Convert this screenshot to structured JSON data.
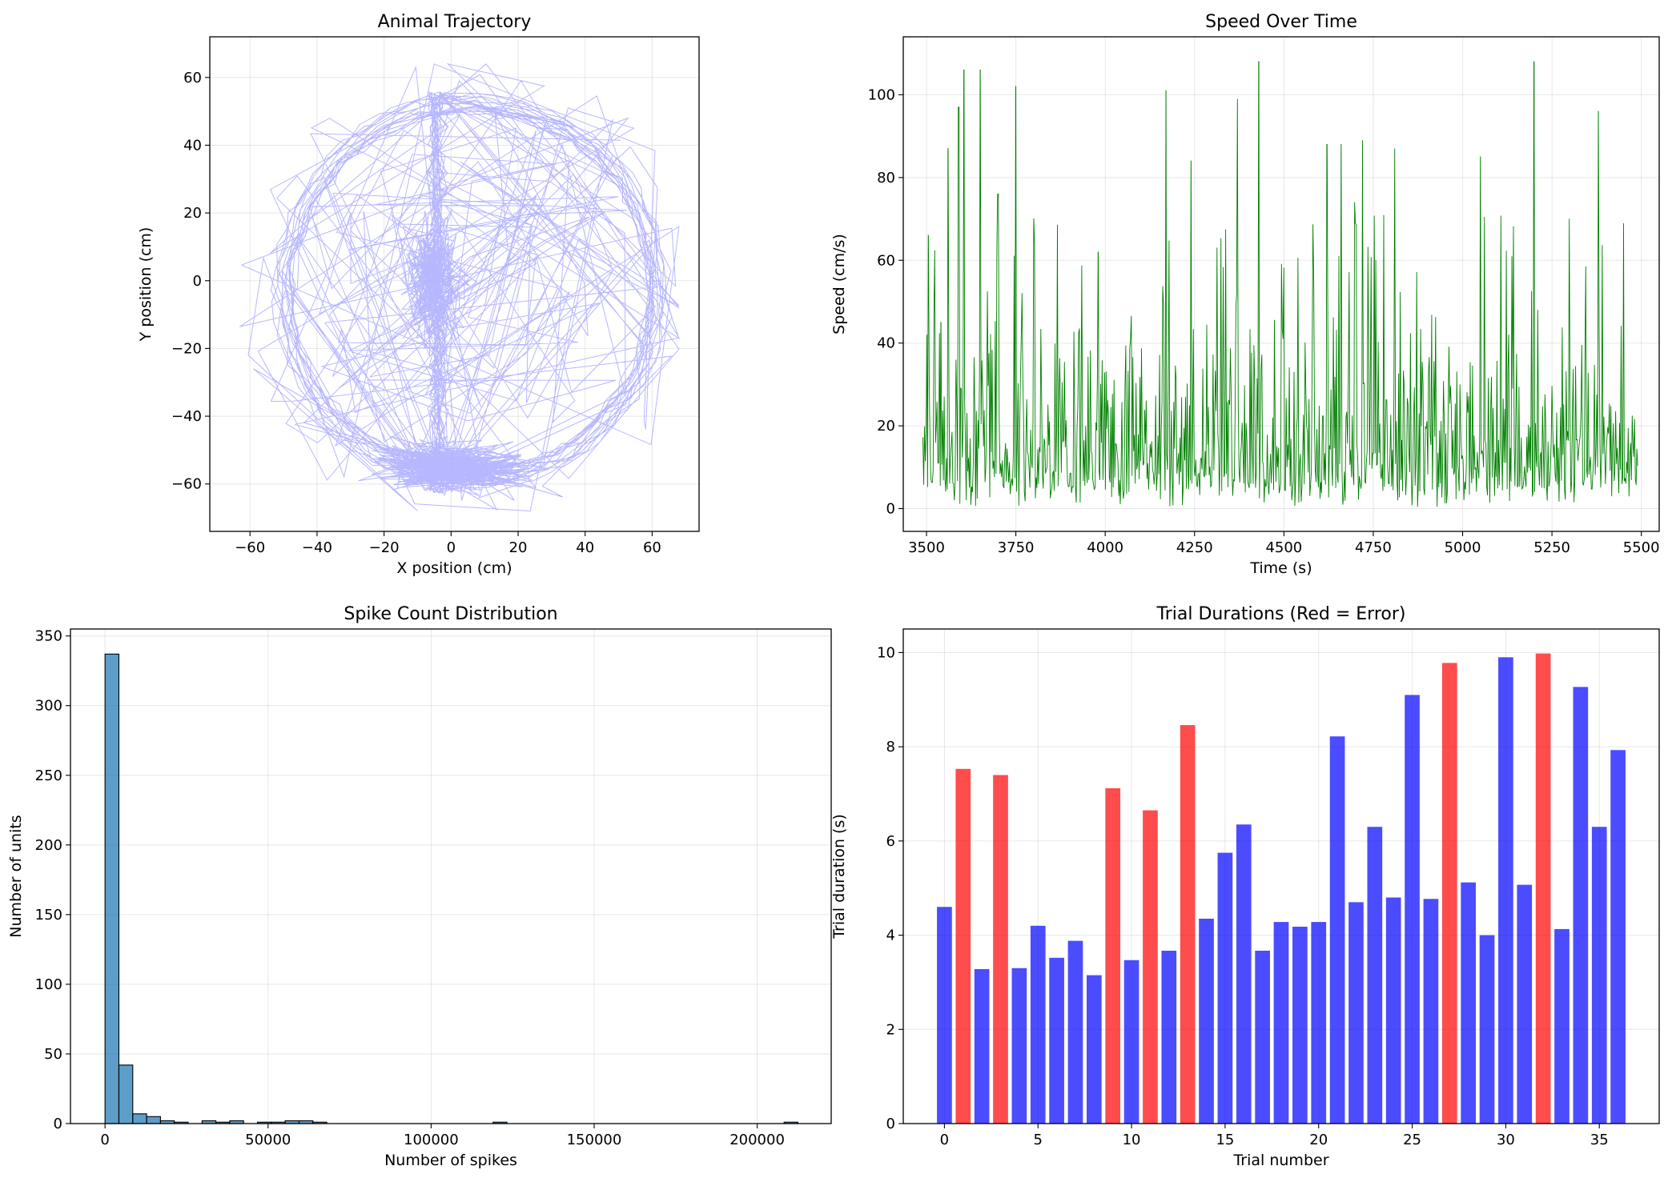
{
  "chart_data": [
    {
      "id": "trajectory",
      "type": "line",
      "title": "Animal Trajectory",
      "xlabel": "X position (cm)",
      "ylabel": "Y position (cm)",
      "xlim": [
        -72,
        74
      ],
      "ylim": [
        -74,
        72
      ],
      "xticks": [
        -60,
        -40,
        -20,
        0,
        20,
        40,
        60
      ],
      "yticks": [
        -60,
        -40,
        -20,
        0,
        20,
        40,
        60
      ],
      "grid": true,
      "color": "#aaaaff",
      "track": {
        "ring_center": [
          6,
          -3
        ],
        "ring_radius": 56,
        "stem_x": -4,
        "stem_y_range": [
          -62,
          55
        ],
        "bottom_cluster_center": [
          0,
          -55
        ],
        "center_cluster_center": [
          -6,
          0
        ],
        "x_range_observed": [
          -64,
          68
        ],
        "y_range_observed": [
          -68,
          64
        ]
      }
    },
    {
      "id": "speed",
      "type": "line",
      "title": "Speed Over Time",
      "xlabel": "Time (s)",
      "ylabel": "Speed (cm/s)",
      "xlim": [
        3435,
        5550
      ],
      "ylim": [
        -5.5,
        114
      ],
      "xticks": [
        3500,
        3750,
        4000,
        4250,
        4500,
        4750,
        5000,
        5250,
        5500
      ],
      "yticks": [
        0,
        20,
        40,
        60,
        80,
        100
      ],
      "grid": true,
      "color": "#008000",
      "time_range": [
        3490,
        5490
      ],
      "peaks": [
        {
          "t": 3505,
          "v": 66
        },
        {
          "t": 3540,
          "v": 45
        },
        {
          "t": 3560,
          "v": 87
        },
        {
          "t": 3590,
          "v": 97
        },
        {
          "t": 3605,
          "v": 106
        },
        {
          "t": 3650,
          "v": 106
        },
        {
          "t": 3700,
          "v": 76
        },
        {
          "t": 3750,
          "v": 102
        },
        {
          "t": 3800,
          "v": 70
        },
        {
          "t": 3980,
          "v": 62
        },
        {
          "t": 4170,
          "v": 101
        },
        {
          "t": 4240,
          "v": 84
        },
        {
          "t": 4370,
          "v": 99
        },
        {
          "t": 4430,
          "v": 108
        },
        {
          "t": 4620,
          "v": 88
        },
        {
          "t": 4660,
          "v": 88
        },
        {
          "t": 4720,
          "v": 89
        },
        {
          "t": 4810,
          "v": 87
        },
        {
          "t": 5050,
          "v": 85
        },
        {
          "t": 5200,
          "v": 108
        },
        {
          "t": 5380,
          "v": 96
        }
      ]
    },
    {
      "id": "spike_hist",
      "type": "bar",
      "title": "Spike Count Distribution",
      "xlabel": "Number of spikes",
      "ylabel": "Number of units",
      "xlim": [
        -10600,
        222700
      ],
      "ylim": [
        0,
        355
      ],
      "xticks": [
        0,
        50000,
        100000,
        150000,
        200000
      ],
      "yticks": [
        0,
        50,
        100,
        150,
        200,
        250,
        300,
        350
      ],
      "grid": true,
      "color": "#1f77b4",
      "bin_width": 4250,
      "bin_start": 0,
      "bins": [
        {
          "index": 0,
          "count": 337
        },
        {
          "index": 1,
          "count": 42
        },
        {
          "index": 2,
          "count": 7
        },
        {
          "index": 3,
          "count": 5
        },
        {
          "index": 4,
          "count": 2
        },
        {
          "index": 5,
          "count": 1
        },
        {
          "index": 7,
          "count": 2
        },
        {
          "index": 8,
          "count": 1
        },
        {
          "index": 9,
          "count": 2
        },
        {
          "index": 11,
          "count": 1
        },
        {
          "index": 12,
          "count": 1
        },
        {
          "index": 13,
          "count": 2
        },
        {
          "index": 14,
          "count": 2
        },
        {
          "index": 15,
          "count": 1
        },
        {
          "index": 28,
          "count": 1
        },
        {
          "index": 49,
          "count": 1
        }
      ]
    },
    {
      "id": "trial_durations",
      "type": "bar",
      "title": "Trial Durations (Red = Error)",
      "xlabel": "Trial number",
      "ylabel": "Trial duration (s)",
      "xlim": [
        -2.2,
        38.2
      ],
      "ylim": [
        0,
        10.5
      ],
      "xticks": [
        0,
        5,
        10,
        15,
        20,
        25,
        30,
        35
      ],
      "yticks": [
        0,
        2,
        4,
        6,
        8,
        10
      ],
      "grid": true,
      "colors": {
        "correct": "#0000ff",
        "error": "#ff0000"
      },
      "trials": [
        {
          "trial": 0,
          "duration": 4.6,
          "error": false
        },
        {
          "trial": 1,
          "duration": 7.53,
          "error": true
        },
        {
          "trial": 2,
          "duration": 3.28,
          "error": false
        },
        {
          "trial": 3,
          "duration": 7.4,
          "error": true
        },
        {
          "trial": 4,
          "duration": 3.3,
          "error": false
        },
        {
          "trial": 5,
          "duration": 4.2,
          "error": false
        },
        {
          "trial": 6,
          "duration": 3.52,
          "error": false
        },
        {
          "trial": 7,
          "duration": 3.88,
          "error": false
        },
        {
          "trial": 8,
          "duration": 3.15,
          "error": false
        },
        {
          "trial": 9,
          "duration": 7.12,
          "error": true
        },
        {
          "trial": 10,
          "duration": 3.47,
          "error": false
        },
        {
          "trial": 11,
          "duration": 6.65,
          "error": true
        },
        {
          "trial": 12,
          "duration": 3.67,
          "error": false
        },
        {
          "trial": 13,
          "duration": 8.46,
          "error": true
        },
        {
          "trial": 14,
          "duration": 4.35,
          "error": false
        },
        {
          "trial": 15,
          "duration": 5.75,
          "error": false
        },
        {
          "trial": 16,
          "duration": 6.35,
          "error": false
        },
        {
          "trial": 17,
          "duration": 3.67,
          "error": false
        },
        {
          "trial": 18,
          "duration": 4.28,
          "error": false
        },
        {
          "trial": 19,
          "duration": 4.18,
          "error": false
        },
        {
          "trial": 20,
          "duration": 4.28,
          "error": false
        },
        {
          "trial": 21,
          "duration": 8.22,
          "error": false
        },
        {
          "trial": 22,
          "duration": 4.7,
          "error": false
        },
        {
          "trial": 23,
          "duration": 6.3,
          "error": false
        },
        {
          "trial": 24,
          "duration": 4.8,
          "error": false
        },
        {
          "trial": 25,
          "duration": 9.1,
          "error": false
        },
        {
          "trial": 26,
          "duration": 4.77,
          "error": false
        },
        {
          "trial": 27,
          "duration": 9.78,
          "error": true
        },
        {
          "trial": 28,
          "duration": 5.12,
          "error": false
        },
        {
          "trial": 29,
          "duration": 4.0,
          "error": false
        },
        {
          "trial": 30,
          "duration": 9.9,
          "error": false
        },
        {
          "trial": 31,
          "duration": 5.07,
          "error": false
        },
        {
          "trial": 32,
          "duration": 9.98,
          "error": true
        },
        {
          "trial": 33,
          "duration": 4.13,
          "error": false
        },
        {
          "trial": 34,
          "duration": 9.27,
          "error": false
        },
        {
          "trial": 35,
          "duration": 6.3,
          "error": false
        },
        {
          "trial": 36,
          "duration": 7.93,
          "error": false
        }
      ]
    }
  ]
}
